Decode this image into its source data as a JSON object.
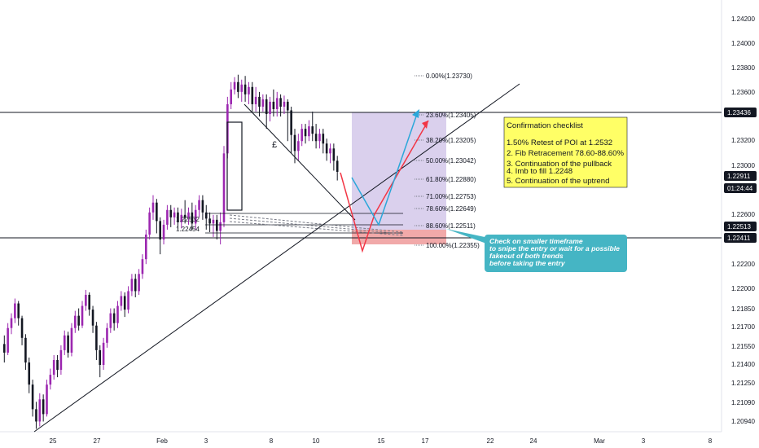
{
  "chart_data": {
    "type": "candlestick",
    "x_ticks": [
      "25",
      "27",
      "Feb",
      "3",
      "8",
      "10",
      "15",
      "17",
      "22",
      "24",
      "Mar",
      "3",
      "8"
    ],
    "y_ticks": [
      "1.24200",
      "1.24000",
      "1.23800",
      "1.23600",
      "1.23200",
      "1.23000",
      "1.22600",
      "1.22200",
      "1.22000",
      "1.21850",
      "1.21700",
      "1.21550",
      "1.21400",
      "1.21250",
      "1.21090",
      "1.20940"
    ],
    "price_tags": [
      {
        "label": "1.23436",
        "style": "dark"
      },
      {
        "label": "1.22911",
        "style": "dark"
      },
      {
        "label": "01:24:44",
        "style": "dark"
      },
      {
        "label": "1.22513",
        "style": "dark"
      },
      {
        "label": "1.22411",
        "style": "dark"
      }
    ],
    "fib_levels": [
      {
        "label": "0.00%(1.23730)"
      },
      {
        "label": "23.60%(1.23405)"
      },
      {
        "label": "38.20%(1.23205)"
      },
      {
        "label": "50.00%(1.23042)"
      },
      {
        "label": "61.80%(1.22880)"
      },
      {
        "label": "71.00%(1.22753)"
      },
      {
        "label": "78.60%(1.22649)"
      },
      {
        "label": "88.60%(1.22511)"
      },
      {
        "label": "100.00%(1.22355)"
      }
    ],
    "left_labels": [
      "1.22532",
      "1.22454"
    ],
    "pattern_label": "£",
    "checklist": {
      "title": "Confirmation checklist",
      "items": [
        "1.50% Retest of POI at 1.2532",
        "2. Fib Retracement 78.60-88.60%",
        "3. Continuation of the pullback",
        "4. Imb to fill 1.2248",
        "5. Continuation of the uptrend"
      ]
    },
    "callout": {
      "lines": [
        "Check on smaller timeframe",
        "to snipe the entry or wait for a possible",
        "fakeout of both trends",
        "before taking the entry"
      ]
    },
    "colors": {
      "bull": "#9c27b0",
      "bear": "#131722",
      "buy_zone": "#d1c4e9",
      "poi_zone": "#ef9a9a",
      "checklist_bg": "#ffff66",
      "callout_bg": "#45b5c4",
      "arrow_red": "#f23645",
      "arrow_blue": "#2ba7d9"
    },
    "grid": false,
    "candles": [
      [
        1.2155,
        1.2148,
        1.2162,
        1.214
      ],
      [
        1.2148,
        1.2168,
        1.2172,
        1.2146
      ],
      [
        1.2168,
        1.2176,
        1.218,
        1.2163
      ],
      [
        1.2176,
        1.2188,
        1.2192,
        1.2172
      ],
      [
        1.2188,
        1.2176,
        1.219,
        1.217
      ],
      [
        1.2176,
        1.216,
        1.2178,
        1.2154
      ],
      [
        1.216,
        1.214,
        1.2163,
        1.2134
      ],
      [
        1.214,
        1.2122,
        1.2144,
        1.2115
      ],
      [
        1.2122,
        1.2102,
        1.2126,
        1.2096
      ],
      [
        1.2102,
        1.2092,
        1.2108,
        1.2086
      ],
      [
        1.2092,
        1.211,
        1.2115,
        1.2088
      ],
      [
        1.211,
        1.2098,
        1.2114,
        1.2092
      ],
      [
        1.2098,
        1.2122,
        1.2126,
        1.2096
      ],
      [
        1.2122,
        1.213,
        1.2135,
        1.2118
      ],
      [
        1.213,
        1.2142,
        1.2146,
        1.2126
      ],
      [
        1.2142,
        1.2134,
        1.2146,
        1.2128
      ],
      [
        1.2134,
        1.215,
        1.2154,
        1.213
      ],
      [
        1.215,
        1.2162,
        1.2166,
        1.2146
      ],
      [
        1.2162,
        1.2148,
        1.2165,
        1.2144
      ],
      [
        1.2148,
        1.2168,
        1.2172,
        1.2145
      ],
      [
        1.2168,
        1.2178,
        1.2182,
        1.2164
      ],
      [
        1.2178,
        1.217,
        1.2184,
        1.2166
      ],
      [
        1.217,
        1.2186,
        1.219,
        1.2168
      ],
      [
        1.2186,
        1.2195,
        1.2199,
        1.2182
      ],
      [
        1.2195,
        1.2183,
        1.2197,
        1.2178
      ],
      [
        1.2183,
        1.217,
        1.2186,
        1.2164
      ],
      [
        1.217,
        1.215,
        1.2173,
        1.2142
      ],
      [
        1.215,
        1.2138,
        1.2154,
        1.2128
      ],
      [
        1.2138,
        1.2156,
        1.216,
        1.2134
      ],
      [
        1.2156,
        1.2168,
        1.2172,
        1.2152
      ],
      [
        1.2168,
        1.218,
        1.2184,
        1.2164
      ],
      [
        1.218,
        1.2172,
        1.2184,
        1.2166
      ],
      [
        1.2172,
        1.2186,
        1.219,
        1.2168
      ],
      [
        1.2186,
        1.2194,
        1.2198,
        1.2182
      ],
      [
        1.2194,
        1.2183,
        1.2197,
        1.2177
      ],
      [
        1.2183,
        1.2198,
        1.2202,
        1.218
      ],
      [
        1.2198,
        1.2208,
        1.2212,
        1.2194
      ],
      [
        1.2208,
        1.2198,
        1.2212,
        1.2193
      ],
      [
        1.2198,
        1.2212,
        1.2216,
        1.2195
      ],
      [
        1.2212,
        1.2224,
        1.2228,
        1.2208
      ],
      [
        1.2224,
        1.2244,
        1.2248,
        1.222
      ],
      [
        1.2244,
        1.2262,
        1.2266,
        1.224
      ],
      [
        1.2262,
        1.227,
        1.2276,
        1.2256
      ],
      [
        1.227,
        1.2255,
        1.2273,
        1.2245
      ],
      [
        1.2255,
        1.224,
        1.2258,
        1.2228
      ],
      [
        1.224,
        1.2252,
        1.2256,
        1.2236
      ],
      [
        1.2252,
        1.2264,
        1.2268,
        1.2248
      ],
      [
        1.2264,
        1.2258,
        1.2268,
        1.225
      ],
      [
        1.2258,
        1.2262,
        1.2266,
        1.2252
      ],
      [
        1.2262,
        1.2254,
        1.2266,
        1.2248
      ],
      [
        1.2254,
        1.226,
        1.2265,
        1.2249
      ],
      [
        1.226,
        1.2258,
        1.2272,
        1.2253
      ],
      [
        1.2258,
        1.2262,
        1.2266,
        1.2252
      ],
      [
        1.2262,
        1.2253,
        1.227,
        1.2248
      ],
      [
        1.2253,
        1.2264,
        1.2268,
        1.2248
      ],
      [
        1.2264,
        1.2272,
        1.2276,
        1.2258
      ],
      [
        1.2272,
        1.2262,
        1.2276,
        1.2256
      ],
      [
        1.2262,
        1.2257,
        1.2268,
        1.2248
      ],
      [
        1.2257,
        1.2253,
        1.2262,
        1.2246
      ],
      [
        1.2253,
        1.2256,
        1.226,
        1.2242
      ],
      [
        1.2256,
        1.2247,
        1.226,
        1.224
      ],
      [
        1.2247,
        1.2254,
        1.2262,
        1.2236
      ],
      [
        1.2254,
        1.231,
        1.2316,
        1.225
      ],
      [
        1.231,
        1.235,
        1.2356,
        1.2306
      ],
      [
        1.235,
        1.2362,
        1.2368,
        1.2346
      ],
      [
        1.2362,
        1.2368,
        1.2372,
        1.2358
      ],
      [
        1.2368,
        1.236,
        1.2374,
        1.2355
      ],
      [
        1.236,
        1.2366,
        1.237,
        1.2352
      ],
      [
        1.2366,
        1.2358,
        1.2373,
        1.2352
      ],
      [
        1.2358,
        1.2364,
        1.2368,
        1.235
      ],
      [
        1.2364,
        1.235,
        1.2368,
        1.2344
      ],
      [
        1.235,
        1.2356,
        1.2364,
        1.2344
      ],
      [
        1.2356,
        1.2348,
        1.236,
        1.234
      ],
      [
        1.2348,
        1.2354,
        1.2358,
        1.2344
      ],
      [
        1.2354,
        1.2342,
        1.2358,
        1.233
      ],
      [
        1.2342,
        1.2352,
        1.2356,
        1.2336
      ],
      [
        1.2352,
        1.2346,
        1.2362,
        1.234
      ],
      [
        1.2346,
        1.2355,
        1.236,
        1.234
      ],
      [
        1.2355,
        1.2348,
        1.2358,
        1.234
      ],
      [
        1.2348,
        1.2352,
        1.2357,
        1.2342
      ],
      [
        1.2352,
        1.2345,
        1.2354,
        1.232
      ],
      [
        1.2345,
        1.2325,
        1.2348,
        1.231
      ],
      [
        1.2325,
        1.2312,
        1.233,
        1.2302
      ],
      [
        1.2312,
        1.232,
        1.2326,
        1.2304
      ],
      [
        1.232,
        1.233,
        1.2334,
        1.2316
      ],
      [
        1.233,
        1.2324,
        1.2334,
        1.2318
      ],
      [
        1.2324,
        1.2332,
        1.2337,
        1.232
      ],
      [
        1.2332,
        1.2326,
        1.2344,
        1.232
      ],
      [
        1.2326,
        1.232,
        1.2334,
        1.2314
      ],
      [
        1.232,
        1.2326,
        1.233,
        1.2314
      ],
      [
        1.2326,
        1.2318,
        1.233,
        1.231
      ],
      [
        1.2318,
        1.231,
        1.2322,
        1.2304
      ],
      [
        1.231,
        1.2314,
        1.2318,
        1.2302
      ],
      [
        1.2314,
        1.2304,
        1.2318,
        1.2296
      ],
      [
        1.2304,
        1.2295,
        1.2308,
        1.2288
      ]
    ]
  }
}
